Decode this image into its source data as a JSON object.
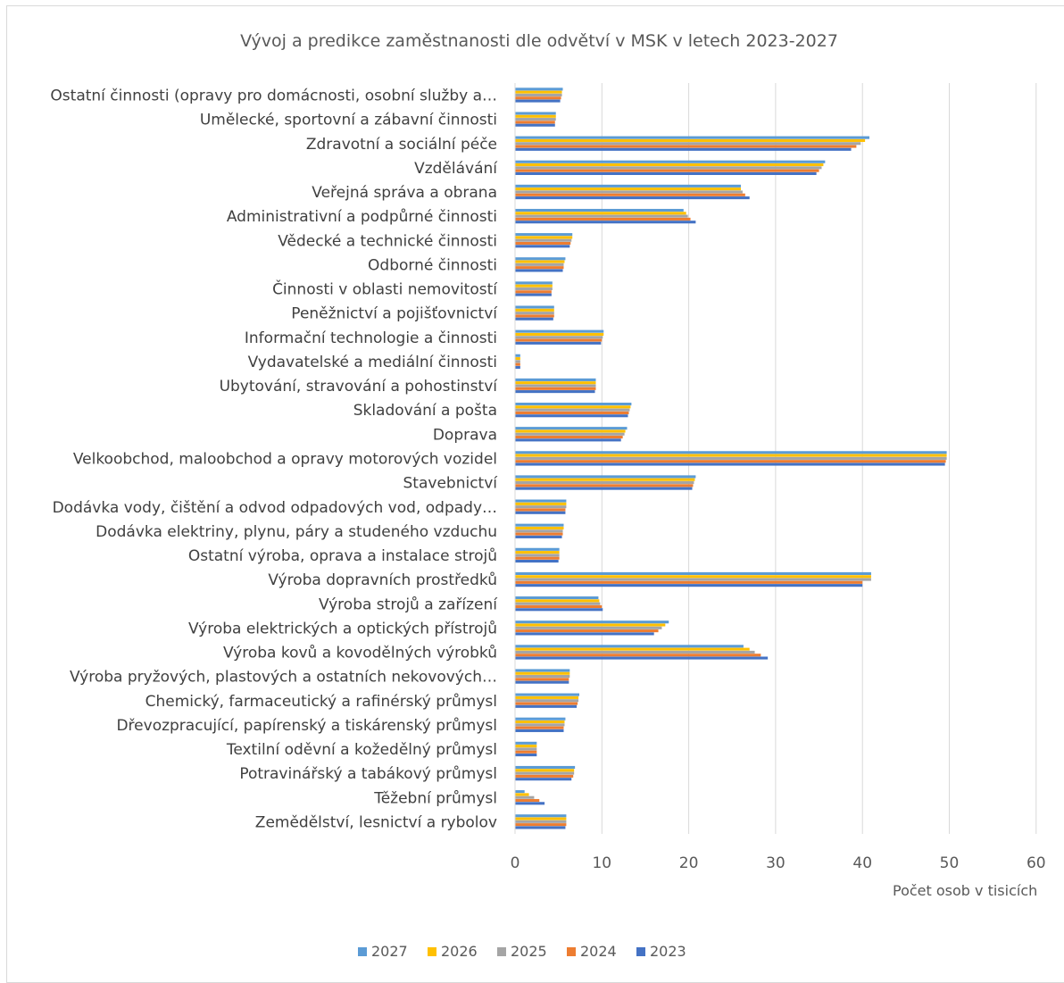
{
  "chart_data": {
    "type": "bar",
    "orientation": "horizontal",
    "title": "Vývoj a predikce zaměstnanosti dle odvětví v MSK v letech 2023-2027",
    "xlabel": "Počet osob v tisicích",
    "ylabel": "",
    "xlim": [
      0,
      60
    ],
    "xticks": [
      0,
      10,
      20,
      30,
      40,
      50,
      60
    ],
    "grid": "vertical",
    "legend_position": "bottom",
    "categories": [
      "Ostatní činnosti (opravy pro domácnosti, osobní služby a…",
      "Umělecké, sportovní a zábavní činnosti",
      "Zdravotní a sociální péče",
      "Vzdělávání",
      "Veřejná správa a obrana",
      "Administrativní a podpůrné činnosti",
      "Vědecké a technické činnosti",
      "Odborné činnosti",
      "Činnosti v oblasti nemovitostí",
      "Peněžnictví a pojišťovnictví",
      "Informační technologie a činnosti",
      "Vydavatelské a mediální činnosti",
      "Ubytování, stravování a pohostinství",
      "Skladování a pošta",
      "Doprava",
      "Velkoobchod, maloobchod a opravy motorových vozidel",
      "Stavebnictví",
      "Dodávka vody, čištění a odvod odpadových vod, odpady…",
      "Dodávka elektriny, plynu, páry a studeného vzduchu",
      "Ostatní výroba, oprava a instalace strojů",
      "Výroba dopravních prostředků",
      "Výroba strojů a zařízení",
      "Výroba elektrických a optických přístrojů",
      "Výroba kovů a kovodělných výrobků",
      "Výroba pryžových, plastových a ostatních nekovových…",
      "Chemický, farmaceutický a rafinérský průmysl",
      "Dřevozpracující, papírenský a tiskárenský průmysl",
      "Textilní oděvní a kožedělný průmysl",
      "Potravinářský a tabákový průmysl",
      "Těžební průmysl",
      "Zemědělství, lesnictví a rybolov"
    ],
    "series": [
      {
        "name": "2027",
        "color": "#5b9bd5",
        "values": [
          5.5,
          4.7,
          40.8,
          35.7,
          26.0,
          19.4,
          6.6,
          5.8,
          4.3,
          4.5,
          10.2,
          0.6,
          9.3,
          13.4,
          12.9,
          49.7,
          20.8,
          5.9,
          5.6,
          5.1,
          41.0,
          9.6,
          17.7,
          26.3,
          6.3,
          7.4,
          5.8,
          2.5,
          6.9,
          1.1,
          5.9
        ]
      },
      {
        "name": "2026",
        "color": "#ffc000",
        "values": [
          5.4,
          4.7,
          40.3,
          35.5,
          26.0,
          19.7,
          6.6,
          5.7,
          4.3,
          4.5,
          10.2,
          0.6,
          9.3,
          13.3,
          12.7,
          49.7,
          20.7,
          5.9,
          5.6,
          5.1,
          41.0,
          9.7,
          17.3,
          27.0,
          6.3,
          7.3,
          5.7,
          2.5,
          6.8,
          1.6,
          5.9
        ]
      },
      {
        "name": "2025",
        "color": "#a5a5a5",
        "values": [
          5.4,
          4.7,
          39.8,
          35.3,
          26.2,
          19.9,
          6.5,
          5.6,
          4.3,
          4.5,
          10.1,
          0.6,
          9.3,
          13.2,
          12.6,
          49.7,
          20.6,
          5.9,
          5.5,
          5.1,
          41.0,
          9.8,
          16.9,
          27.6,
          6.3,
          7.3,
          5.7,
          2.5,
          6.8,
          2.2,
          5.9
        ]
      },
      {
        "name": "2024",
        "color": "#ed7d31",
        "values": [
          5.3,
          4.6,
          39.3,
          35.0,
          26.5,
          20.2,
          6.4,
          5.6,
          4.2,
          4.5,
          10.0,
          0.6,
          9.3,
          13.1,
          12.4,
          49.6,
          20.5,
          5.8,
          5.5,
          5.1,
          40.0,
          10.0,
          16.5,
          28.3,
          6.2,
          7.2,
          5.6,
          2.5,
          6.7,
          2.8,
          5.9
        ]
      },
      {
        "name": "2023",
        "color": "#4472c4",
        "values": [
          5.2,
          4.6,
          38.7,
          34.7,
          27.0,
          20.8,
          6.3,
          5.5,
          4.2,
          4.4,
          9.9,
          0.6,
          9.2,
          13.0,
          12.2,
          49.5,
          20.4,
          5.8,
          5.4,
          5.0,
          40.0,
          10.1,
          16.0,
          29.1,
          6.2,
          7.1,
          5.6,
          2.5,
          6.5,
          3.4,
          5.8
        ]
      }
    ]
  }
}
